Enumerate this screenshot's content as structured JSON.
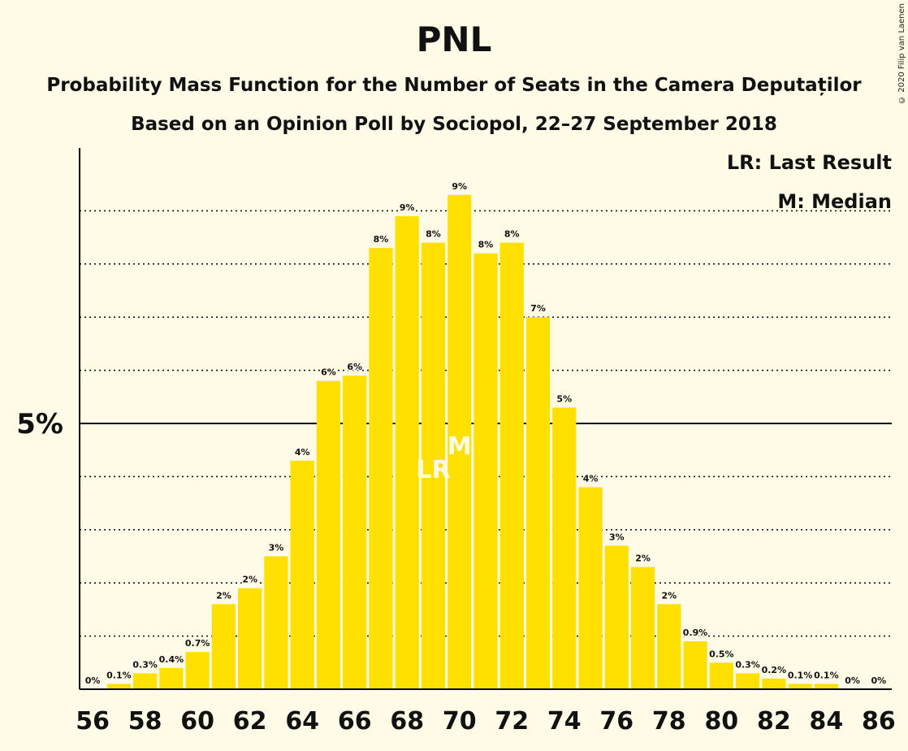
{
  "copyright": "© 2020 Filip van Laenen",
  "legend": {
    "lr": "LR: Last Result",
    "m": "M: Median"
  },
  "colors": {
    "bar": "#ffe000",
    "background": "#fffbe6",
    "axis": "#000000",
    "marker_text": "#fffbe6"
  },
  "chart_data": {
    "type": "bar",
    "title": "PNL",
    "subtitle": "Probability Mass Function for the Number of Seats in the Camera Deputaților",
    "subtitle2": "Based on an Opinion Poll by Sociopol, 22–27 September 2018",
    "xlabel": "",
    "ylabel": "",
    "x": [
      56,
      57,
      58,
      59,
      60,
      61,
      62,
      63,
      64,
      65,
      66,
      67,
      68,
      69,
      70,
      71,
      72,
      73,
      74,
      75,
      76,
      77,
      78,
      79,
      80,
      81,
      82,
      83,
      84,
      85,
      86
    ],
    "values": [
      0,
      0.1,
      0.3,
      0.4,
      0.7,
      1.6,
      1.9,
      2.5,
      4.3,
      5.8,
      5.9,
      8.3,
      8.9,
      8.4,
      9.3,
      8.2,
      8.4,
      7.0,
      5.3,
      3.8,
      2.7,
      2.3,
      1.6,
      0.9,
      0.5,
      0.3,
      0.2,
      0.1,
      0.1,
      0,
      0
    ],
    "labels": [
      "0%",
      "0.1%",
      "0.3%",
      "0.4%",
      "0.7%",
      "2%",
      "2%",
      "3%",
      "4%",
      "6%",
      "6%",
      "8%",
      "9%",
      "8%",
      "9%",
      "8%",
      "8%",
      "7%",
      "5%",
      "4%",
      "3%",
      "2%",
      "2%",
      "0.9%",
      "0.5%",
      "0.3%",
      "0.2%",
      "0.1%",
      "0.1%",
      "0%",
      "0%"
    ],
    "x_ticks": [
      "56",
      "58",
      "60",
      "62",
      "64",
      "66",
      "68",
      "70",
      "72",
      "74",
      "76",
      "78",
      "80",
      "82",
      "84",
      "86"
    ],
    "y_tick_label": "5%",
    "y_tick_value": 5,
    "ylim": [
      0,
      10
    ],
    "grid": true,
    "last_result_seat": 69,
    "last_result_label": "LR",
    "median_seat": 70,
    "median_label": "M",
    "legend_position": "top-right"
  }
}
